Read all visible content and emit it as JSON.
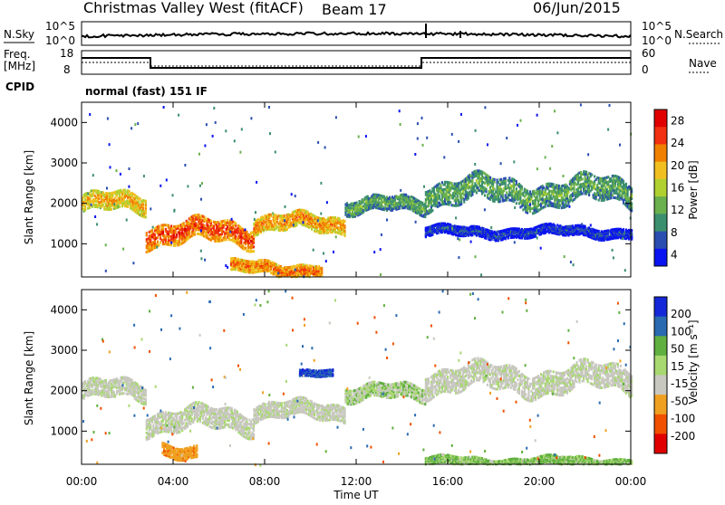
{
  "header": {
    "title": "Christmas Valley West (fitACF)",
    "beam": "Beam 17",
    "date": "06/Jun/2015"
  },
  "panels": {
    "nsky": {
      "label": "N.Sky",
      "tick_top": "10^5",
      "tick_bottom": "10^0",
      "right_top": "10^5",
      "right_bottom": "10^0",
      "right_label": "N.Search"
    },
    "freq": {
      "label": "Freq.",
      "unit": "[MHz]",
      "tick_top": "18",
      "tick_bottom": "8",
      "right_top": "60",
      "right_bottom": "0",
      "right_label": "Nave"
    },
    "cpid": {
      "label": "CPID",
      "mode": "normal (fast) 151 IF"
    }
  },
  "colors": {
    "power": [
      "#0a14f0",
      "#2a4eb0",
      "#3c8f6e",
      "#6ab04c",
      "#b0d030",
      "#f0c020",
      "#f08000",
      "#f03010",
      "#e00000"
    ],
    "velocity": [
      "#e00000",
      "#f05000",
      "#f0a020",
      "#c8c8c0",
      "#a8d870",
      "#60b040",
      "#2a6ab0",
      "#1428d8"
    ],
    "gray": "#c8c8c0"
  },
  "chart_data": [
    {
      "type": "heatmap",
      "title": "Power",
      "ylabel": "Slant Range [km]",
      "xlabel": "",
      "ylim": [
        180,
        4500
      ],
      "xlim": [
        0,
        24
      ],
      "yticks": [
        "1000",
        "2000",
        "3000",
        "4000"
      ],
      "xticks": [
        "00:00",
        "04:00",
        "08:00",
        "12:00",
        "16:00",
        "20:00",
        "00:00"
      ],
      "colorbar": {
        "label": "Power [dB]",
        "ticks": [
          "4",
          "8",
          "12",
          "16",
          "20",
          "24",
          "28"
        ]
      },
      "features": [
        {
          "from": 0,
          "to": 2.8,
          "range": 2000,
          "width": 220,
          "power": 24
        },
        {
          "from": 2.8,
          "to": 7.5,
          "range": 1280,
          "width": 260,
          "power": 30
        },
        {
          "from": 7.5,
          "to": 11.5,
          "range": 1500,
          "width": 200,
          "power": 26
        },
        {
          "from": 11.5,
          "to": 15,
          "range": 1950,
          "width": 180,
          "power": 14
        },
        {
          "from": 15,
          "to": 24,
          "range": 2300,
          "width": 300,
          "power": 14
        },
        {
          "from": 6.5,
          "to": 10.5,
          "range": 400,
          "width": 150,
          "power": 28
        },
        {
          "from": 15,
          "to": 24,
          "range": 1300,
          "width": 120,
          "power": 6
        }
      ]
    },
    {
      "type": "heatmap",
      "title": "Velocity",
      "ylabel": "Slant Range [km]",
      "xlabel": "Time UT",
      "ylim": [
        180,
        4500
      ],
      "xlim": [
        0,
        24
      ],
      "yticks": [
        "1000",
        "2000",
        "3000",
        "4000"
      ],
      "xticks": [
        "00:00",
        "04:00",
        "08:00",
        "12:00",
        "16:00",
        "20:00",
        "00:00"
      ],
      "colorbar": {
        "label": "Velocity [m s⁻¹]",
        "ticks": [
          "200",
          "100",
          "50",
          "15",
          "-15",
          "-50",
          "-100",
          "-200"
        ]
      },
      "features": [
        {
          "from": 0,
          "to": 2.8,
          "range": 2000,
          "width": 220,
          "velocity": 0
        },
        {
          "from": 2.8,
          "to": 7.5,
          "range": 1280,
          "width": 260,
          "velocity": 0
        },
        {
          "from": 7.5,
          "to": 11.5,
          "range": 1500,
          "width": 200,
          "velocity": 0
        },
        {
          "from": 11.5,
          "to": 15,
          "range": 1950,
          "width": 180,
          "velocity": 20
        },
        {
          "from": 15,
          "to": 24,
          "range": 2300,
          "width": 300,
          "velocity": 0
        },
        {
          "from": 3.5,
          "to": 5,
          "range": 550,
          "width": 150,
          "velocity": -60
        },
        {
          "from": 15,
          "to": 24,
          "range": 250,
          "width": 100,
          "velocity": 30
        },
        {
          "from": 9.5,
          "to": 11,
          "range": 2400,
          "width": 80,
          "velocity": 150
        }
      ]
    }
  ]
}
